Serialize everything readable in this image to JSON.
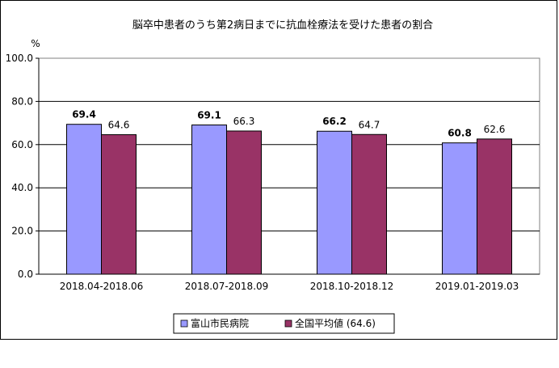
{
  "chart_data": {
    "type": "bar",
    "title": "脳卒中患者のうち第2病日までに抗血栓療法を受けた患者の割合",
    "yunit": "%",
    "ylim": [
      0,
      100
    ],
    "ytick_step": 20,
    "ytick_labels": [
      "0.0",
      "20.0",
      "40.0",
      "60.0",
      "80.0",
      "100.0"
    ],
    "grid": true,
    "legend_position": "bottom",
    "categories": [
      "2018.04-2018.06",
      "2018.07-2018.09",
      "2018.10-2018.12",
      "2019.01-2019.03"
    ],
    "series": [
      {
        "name": "富山市民病院",
        "values": [
          69.4,
          69.1,
          66.2,
          60.8
        ],
        "labels": [
          "69.4",
          "69.1",
          "66.2",
          "60.8"
        ],
        "color": "#9999ff",
        "label_bold": true
      },
      {
        "name": "全国平均値 (64.6)",
        "values": [
          64.6,
          66.3,
          64.7,
          62.6
        ],
        "labels": [
          "64.6",
          "66.3",
          "64.7",
          "62.6"
        ],
        "color": "#993366",
        "label_bold": false
      }
    ]
  }
}
